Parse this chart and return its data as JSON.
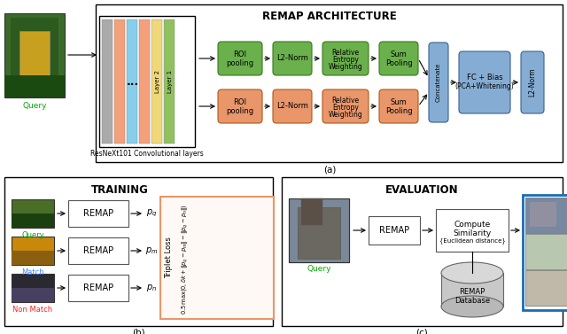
{
  "title_arch": "REMAP ARCHITECTURE",
  "title_train": "TRAINING",
  "title_eval": "EVALUATION",
  "label_a": "(a)",
  "label_b": "(b)",
  "label_c": "(c)",
  "green_color": "#6ab04c",
  "orange_color": "#e8966a",
  "blue_color": "#85add4",
  "white": "#ffffff",
  "black": "#000000",
  "query_color": "#00aa00",
  "match_color": "#4488ff",
  "nonmatch_color": "#ff2222",
  "ranked_border": "#1a6bb5",
  "triplet_border": "#e8966a"
}
